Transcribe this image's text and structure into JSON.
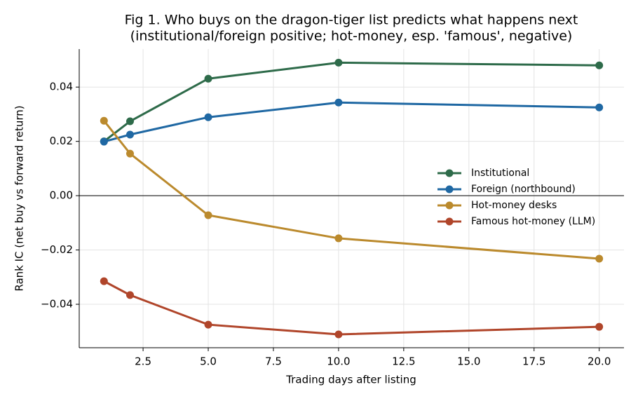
{
  "chart_data": {
    "type": "line",
    "title": [
      "Fig 1. Who buys on the dragon-tiger list predicts what happens next",
      "(institutional/foreign positive; hot-money, esp. 'famous', negative)"
    ],
    "x_label": "Trading days after listing",
    "y_label": "Rank IC (net buy vs forward return)",
    "x": [
      1,
      2,
      5,
      10,
      20
    ],
    "series": [
      {
        "name": "Institutional",
        "color": "#2e6b4a",
        "values": [
          0.02,
          0.0274,
          0.0431,
          0.049,
          0.048
        ]
      },
      {
        "name": "Foreign (northbound)",
        "color": "#1f68a3",
        "values": [
          0.0199,
          0.0225,
          0.0289,
          0.0343,
          0.0325
        ]
      },
      {
        "name": "Hot-money desks",
        "color": "#bb8a2d",
        "values": [
          0.0276,
          0.0155,
          -0.0072,
          -0.0157,
          -0.0232
        ]
      },
      {
        "name": "Famous hot-money (LLM)",
        "color": "#b0452a",
        "values": [
          -0.0315,
          -0.0366,
          -0.0475,
          -0.0511,
          -0.0483
        ]
      }
    ],
    "xlim": [
      0.05,
      20.95
    ],
    "ylim": [
      -0.056,
      0.054
    ],
    "xticks": [
      2.5,
      {
        "value": 5,
        "label": "5.0"
      },
      7.5,
      {
        "value": 10,
        "label": "10.0"
      },
      12.5,
      {
        "value": 15,
        "label": "15.0"
      },
      17.5,
      {
        "value": 20,
        "label": "20.0"
      }
    ],
    "yticks": [
      {
        "value": -0.04,
        "label": "−0.04"
      },
      {
        "value": -0.02,
        "label": "−0.02"
      },
      {
        "value": 0,
        "label": "0.00"
      },
      {
        "value": 0.02,
        "label": "0.02"
      },
      {
        "value": 0.04,
        "label": "0.04"
      }
    ],
    "grid": true,
    "zero_line": true,
    "legend_position": "center right"
  }
}
